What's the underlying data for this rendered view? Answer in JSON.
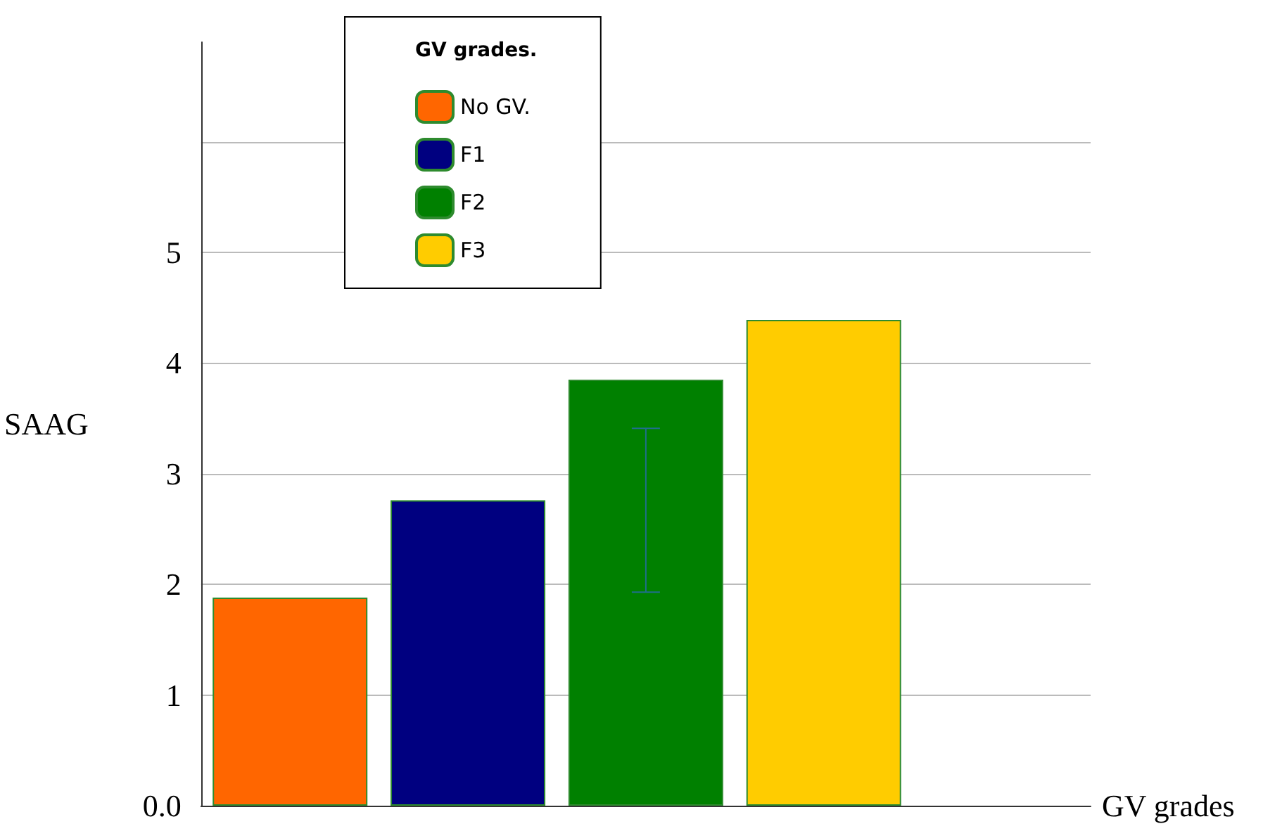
{
  "chart_data": {
    "type": "bar",
    "categories": [
      null,
      null,
      null,
      null,
      null
    ],
    "xlabel": "GV grades",
    "ylabel": "SAAG",
    "legend_title": "GV grades.",
    "series": [
      {
        "name": "No GV.",
        "color": "#ff6600",
        "values": [
          1.88,
          null,
          null,
          null,
          null
        ]
      },
      {
        "name": "F1",
        "color": "#000080",
        "values": [
          null,
          2.76,
          null,
          null,
          null
        ]
      },
      {
        "name": "F2",
        "color": "#008000",
        "values": [
          null,
          null,
          3.85,
          null,
          null
        ],
        "errors": [
          null,
          null,
          [
            1.93,
            3.41
          ],
          null,
          null
        ]
      },
      {
        "name": "F3",
        "color": "#ffcc00",
        "values": [
          null,
          null,
          null,
          4.39,
          null
        ]
      }
    ],
    "ylim": [
      0,
      6.9
    ],
    "yticks": [
      {
        "value": 0,
        "label": "0.0"
      },
      1,
      2,
      3,
      4,
      5,
      {
        "value": 6,
        "label": null
      }
    ],
    "grid": "y",
    "legend": "top left"
  }
}
